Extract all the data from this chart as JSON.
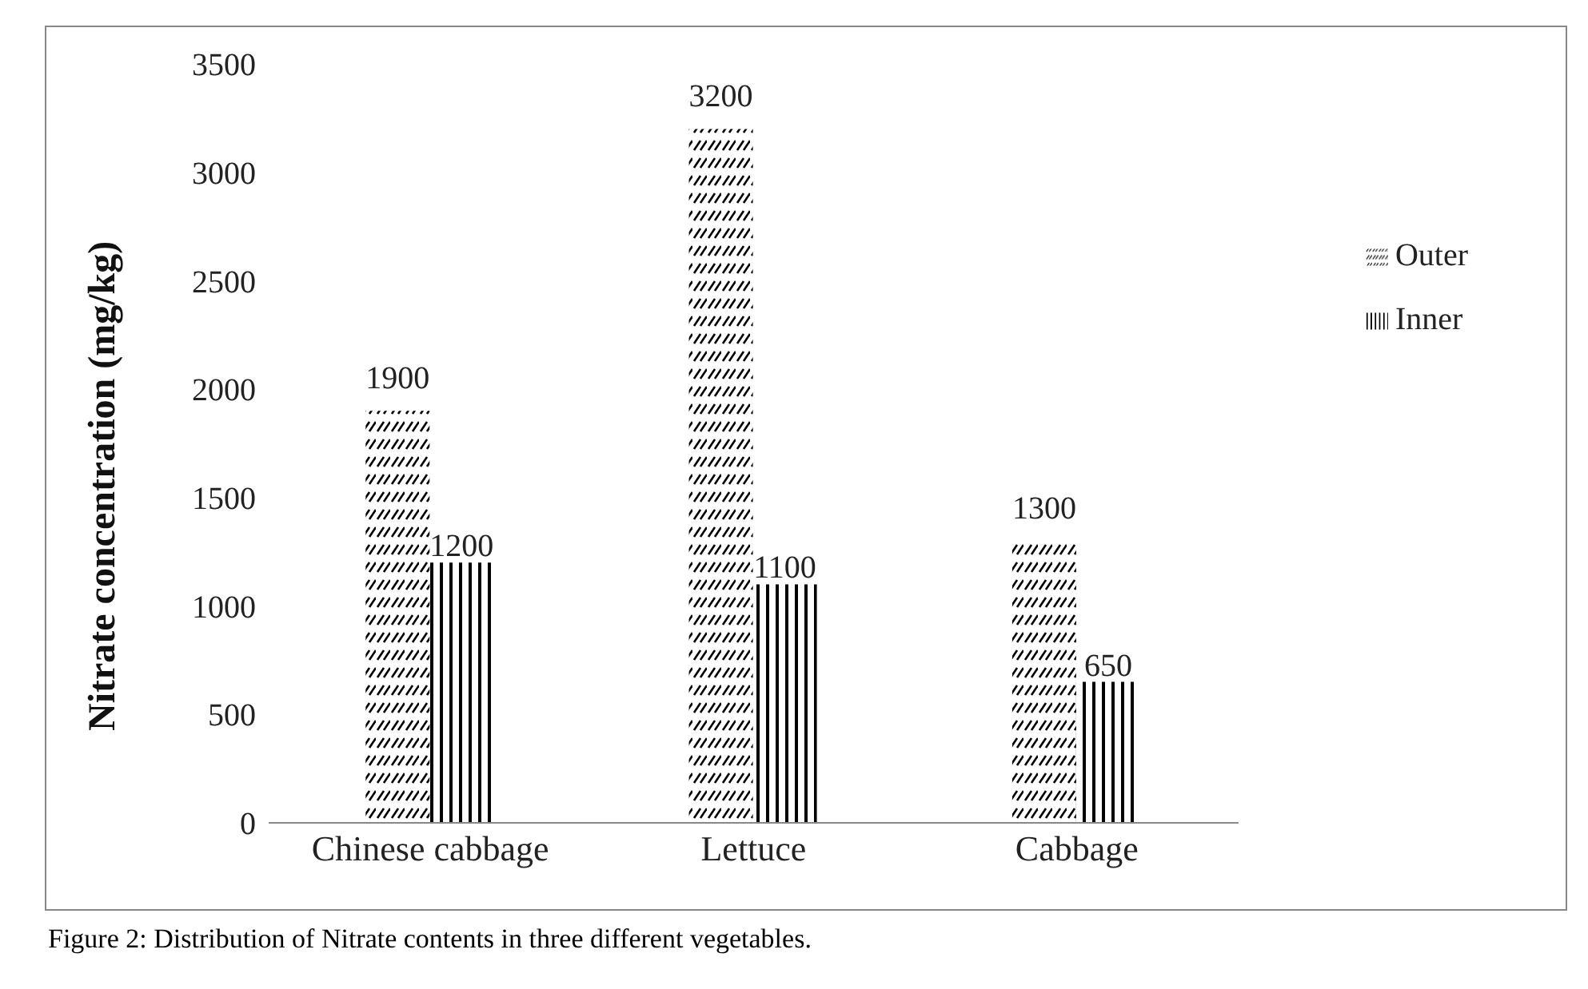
{
  "chart_data": {
    "type": "bar",
    "ylabel": "Nitrate concentration (mg/kg)",
    "categories": [
      "Chinese cabbage",
      "Lettuce",
      "Cabbage"
    ],
    "series": [
      {
        "name": "Outer",
        "color": "#000000",
        "values": [
          1900,
          3200,
          1300
        ]
      },
      {
        "name": "Inner",
        "color": "#000000",
        "values": [
          1200,
          1100,
          650
        ]
      }
    ],
    "ylim": [
      0,
      3500
    ],
    "yticks": [
      0,
      500,
      1000,
      1500,
      2000,
      2500,
      3000,
      3500
    ],
    "legend": "top right",
    "data_labels": true,
    "annotations": [
      "Figure 2: Distribution of Nitrate contents in three different vegetables."
    ]
  }
}
